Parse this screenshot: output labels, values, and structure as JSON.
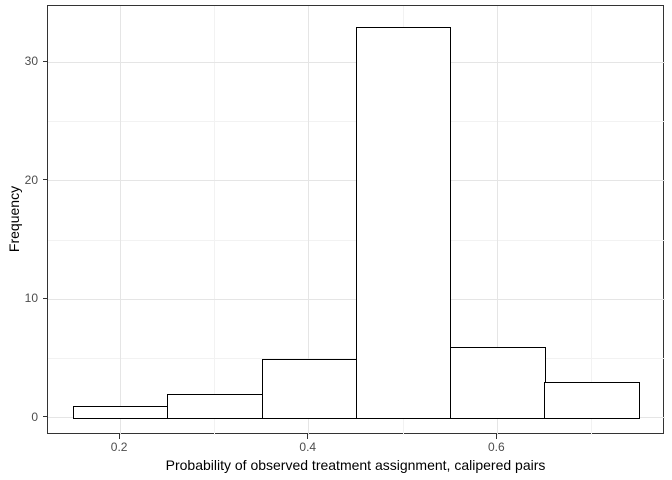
{
  "figure": {
    "background": "#ffffff"
  },
  "chart_data": {
    "type": "bar",
    "subtype": "histogram",
    "title": "",
    "xlabel": "Probability of observed treatment assignment, calipered pairs",
    "ylabel": "Frequency",
    "bins": [
      {
        "x0": 0.15,
        "x1": 0.25,
        "count": 1
      },
      {
        "x0": 0.25,
        "x1": 0.35,
        "count": 2
      },
      {
        "x0": 0.35,
        "x1": 0.45,
        "count": 5
      },
      {
        "x0": 0.45,
        "x1": 0.55,
        "count": 33
      },
      {
        "x0": 0.55,
        "x1": 0.65,
        "count": 6
      },
      {
        "x0": 0.65,
        "x1": 0.75,
        "count": 3
      }
    ],
    "x_ticks": [
      {
        "value": 0.2,
        "label": "0.2"
      },
      {
        "value": 0.4,
        "label": "0.4"
      },
      {
        "value": 0.6,
        "label": "0.6"
      }
    ],
    "y_ticks": [
      {
        "value": 0,
        "label": "0"
      },
      {
        "value": 10,
        "label": "10"
      },
      {
        "value": 20,
        "label": "20"
      },
      {
        "value": 30,
        "label": "30"
      }
    ],
    "x_minor_gridlines": [
      0.3,
      0.5,
      0.7
    ],
    "y_minor_gridlines": [
      5,
      15,
      25
    ],
    "xlim": [
      0.1235,
      0.7778
    ],
    "ylim": [
      -1.45,
      34.75
    ],
    "grid": "major+minor",
    "legend": false,
    "colors": {
      "bar_fill": "#ffffff",
      "bar_border": "#000000",
      "panel_background": "#ffffff",
      "panel_border": "#333333",
      "grid_major": "#e5e5e5",
      "grid_minor": "#f2f2f2",
      "tick_mark": "#333333",
      "tick_label": "#4d4d4d",
      "axis_title": "#000000"
    }
  }
}
